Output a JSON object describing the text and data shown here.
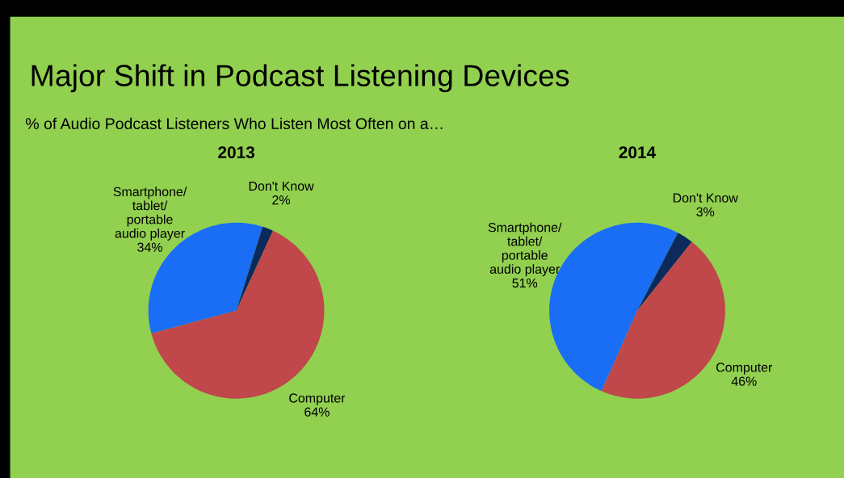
{
  "chart_data": [
    {
      "type": "pie",
      "title": "2013",
      "annotations": [
        "Major Shift in Podcast Listening Devices",
        "% of Audio Podcast Listeners Who Listen Most Often on a…"
      ],
      "categories": [
        "Smartphone/\ntablet/\nportable\naudio player",
        "Don't Know",
        "Computer"
      ],
      "values": [
        34,
        2,
        64
      ],
      "value_labels": [
        "34%",
        "2%",
        "64%"
      ],
      "colors": [
        "#1a6ef5",
        "#0d2a5c",
        "#c0474a"
      ]
    },
    {
      "type": "pie",
      "title": "2014",
      "categories": [
        "Smartphone/\ntablet/\nportable\naudio player",
        "Don't Know",
        "Computer"
      ],
      "values": [
        51,
        3,
        46
      ],
      "value_labels": [
        "51%",
        "3%",
        "46%"
      ],
      "colors": [
        "#1a6ef5",
        "#0d2a5c",
        "#c0474a"
      ]
    }
  ]
}
